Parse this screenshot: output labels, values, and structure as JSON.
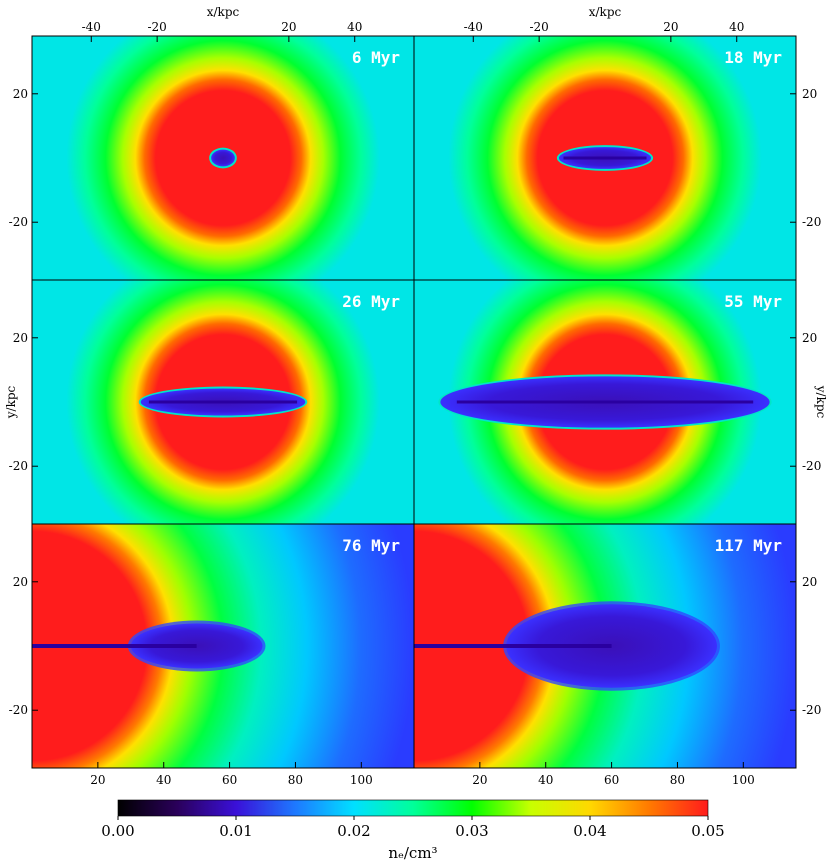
{
  "chart_data": {
    "type": "heatmap",
    "quantity": "n_e",
    "layout": {
      "rows": 3,
      "cols": 2
    },
    "panels": [
      {
        "time": "6 Myr",
        "view": "full",
        "xlim": [
          -58,
          58
        ],
        "ylim": [
          -38,
          38
        ],
        "lobes": [
          {
            "cx": 0,
            "cy": 0,
            "rx": 3.6,
            "ry": 2.6,
            "jet": false
          }
        ]
      },
      {
        "time": "18 Myr",
        "view": "full",
        "xlim": [
          -58,
          58
        ],
        "ylim": [
          -38,
          38
        ],
        "lobes": [
          {
            "cx": 0,
            "cy": 0,
            "rx": 14,
            "ry": 3.4,
            "jet": true
          }
        ]
      },
      {
        "time": "26 Myr",
        "view": "full",
        "xlim": [
          -58,
          58
        ],
        "ylim": [
          -38,
          38
        ],
        "lobes": [
          {
            "cx": 0,
            "cy": 0,
            "rx": 25,
            "ry": 4.2,
            "jet": true
          }
        ]
      },
      {
        "time": "55 Myr",
        "view": "full",
        "xlim": [
          -58,
          58
        ],
        "ylim": [
          -38,
          38
        ],
        "lobes": [
          {
            "cx": 0,
            "cy": 0,
            "rx": 50,
            "ry": 8,
            "jet": true
          }
        ]
      },
      {
        "time": "76 Myr",
        "view": "half",
        "xlim": [
          0,
          116
        ],
        "ylim": [
          -38,
          38
        ],
        "lobes": [
          {
            "cx": 50,
            "cy": 0,
            "rx": 20,
            "ry": 7,
            "jet": true
          }
        ]
      },
      {
        "time": "117 Myr",
        "view": "half",
        "xlim": [
          0,
          116
        ],
        "ylim": [
          -38,
          38
        ],
        "lobes": [
          {
            "cx": 60,
            "cy": 0,
            "rx": 32,
            "ry": 13,
            "jet": true
          }
        ]
      }
    ],
    "axes": {
      "top_xlabel": "x/kpc",
      "left_ylabel": "y/kpc",
      "right_ylabel": "y/kpc",
      "full_xticks": [
        -40,
        -20,
        20,
        40
      ],
      "half_xticks": [
        20,
        40,
        60,
        80,
        100
      ],
      "yticks": [
        20,
        -20
      ]
    },
    "colorbar": {
      "label": "nₑ/cm³",
      "range": [
        0.0,
        0.05
      ],
      "ticks": [
        "0.00",
        "0.01",
        "0.02",
        "0.03",
        "0.04",
        "0.05"
      ],
      "colors": [
        "#000000",
        "#2a005a",
        "#3a10d8",
        "#1e78ff",
        "#00e0ff",
        "#00ff9a",
        "#00ff00",
        "#c8ff00",
        "#ffd800",
        "#ff7a00",
        "#ff1c1c"
      ]
    }
  }
}
